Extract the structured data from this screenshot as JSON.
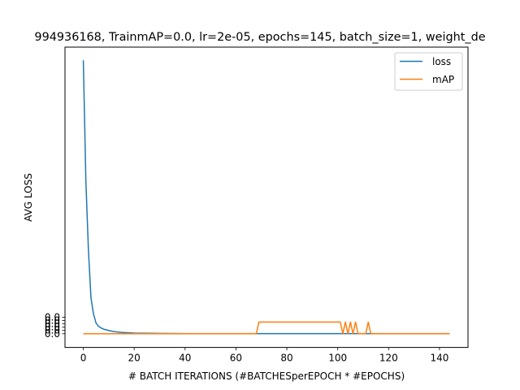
{
  "colors": {
    "loss": "#1f77b4",
    "map": "#ff7f0e",
    "axes": "#000000",
    "background": "#ffffff"
  },
  "chart_data": {
    "type": "line",
    "title": "994936168, TrainmAP=0.0, lr=2e-05, epochs=145, batch_size=1, weight_de",
    "xlabel": "# BATCH ITERATIONS (#BATCHESperEPOCH * #EPOCHS)",
    "ylabel": "AVG LOSS",
    "xlim": [
      -7.2,
      151.2
    ],
    "ylim": [
      -0.083,
      1.74
    ],
    "x_ticks": [
      0,
      20,
      40,
      60,
      80,
      100,
      120,
      140
    ],
    "y_tick_labels": [
      "0.0",
      "0.0",
      "0.0",
      "0.0",
      "0.0",
      "0.0"
    ],
    "y_tick_values": [
      0.0,
      0.02,
      0.04,
      0.06,
      0.08,
      0.1
    ],
    "grid": false,
    "legend_position": "upper right",
    "series": [
      {
        "name": "loss",
        "color_key": "loss",
        "x": [
          0,
          1,
          2,
          3,
          4,
          5,
          6,
          7,
          8,
          10,
          12,
          15,
          20,
          30,
          40,
          50,
          60,
          70,
          80,
          90,
          100,
          110,
          120,
          130,
          144
        ],
        "y": [
          1.66,
          0.93,
          0.51,
          0.22,
          0.12,
          0.065,
          0.045,
          0.035,
          0.028,
          0.02,
          0.013,
          0.008,
          0.004,
          0.002,
          0.001,
          0.001,
          0.001,
          0.001,
          0.001,
          0.001,
          0.001,
          0.001,
          0.001,
          0.001,
          0.001
        ]
      },
      {
        "name": "mAP",
        "color_key": "map",
        "x": [
          0,
          68,
          69,
          101,
          102,
          103,
          104,
          105,
          106,
          107,
          108,
          111,
          112,
          113,
          144
        ],
        "y": [
          0.0,
          0.0,
          0.071,
          0.071,
          0.0,
          0.071,
          0.0,
          0.071,
          0.0,
          0.071,
          0.0,
          0.0,
          0.071,
          0.0,
          0.0
        ]
      }
    ]
  }
}
